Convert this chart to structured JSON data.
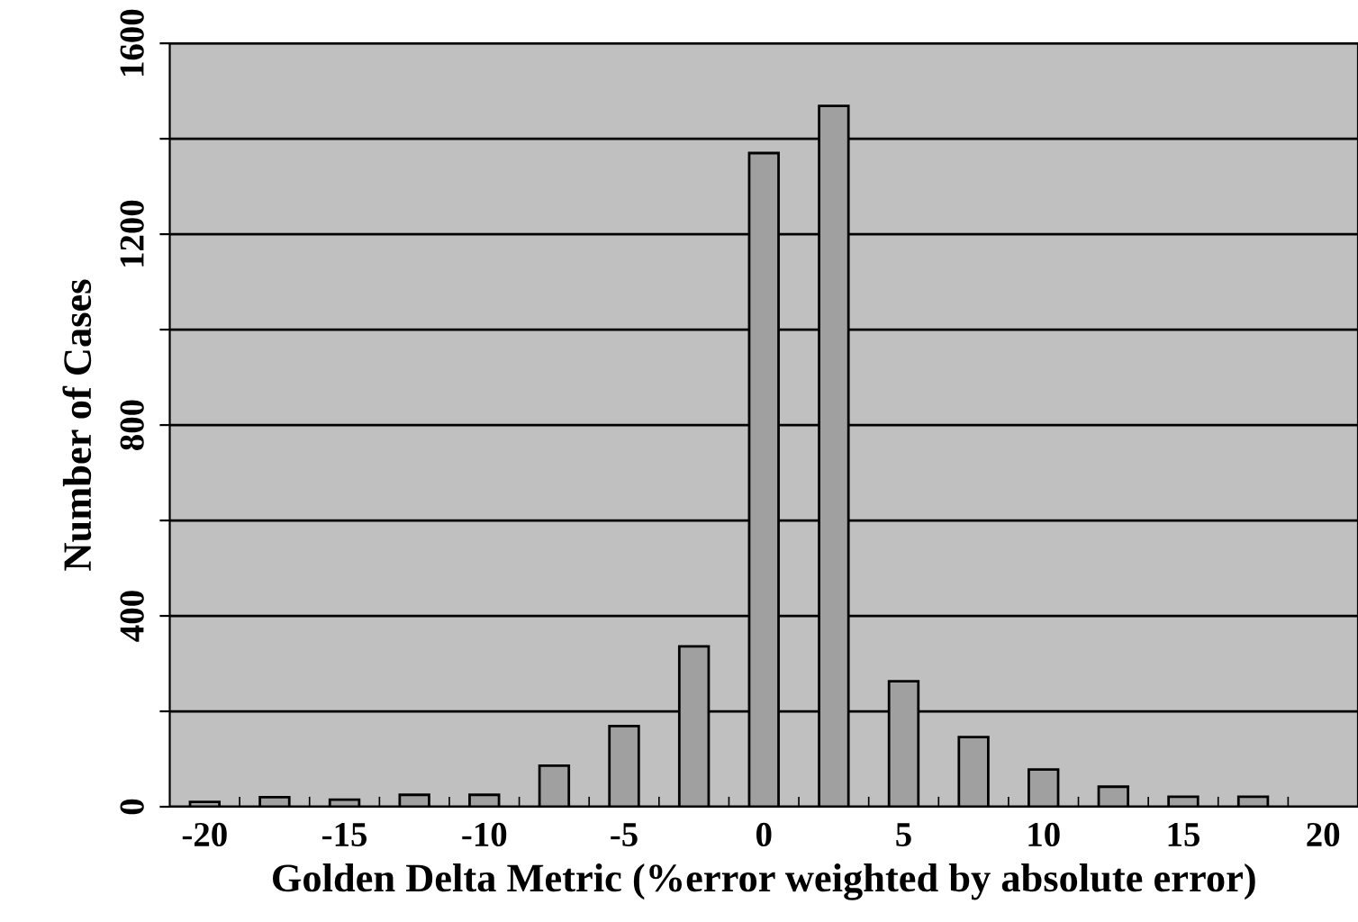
{
  "chart_data": {
    "type": "bar",
    "xlabel": "Golden Delta Metric (%error weighted by absolute error)",
    "ylabel": "Number of Cases",
    "categories": [
      "-20",
      null,
      "-15",
      null,
      "-10",
      null,
      "-5",
      null,
      "0",
      null,
      "5",
      null,
      "10",
      null,
      "15",
      null,
      "20"
    ],
    "values": [
      10,
      20,
      15,
      25,
      25,
      86,
      169,
      336,
      1370,
      1469,
      263,
      146,
      78,
      42,
      21,
      21,
      null
    ],
    "color": "#a0a0a0",
    "ylim": [
      0,
      1600
    ],
    "yticks": [
      0,
      {
        "value": 200,
        "label": null
      },
      400,
      {
        "value": 600,
        "label": null
      },
      800,
      {
        "value": 1000,
        "label": null
      },
      1200,
      {
        "value": 1400,
        "label": null
      },
      1600
    ],
    "grid": "y",
    "legend": false
  }
}
